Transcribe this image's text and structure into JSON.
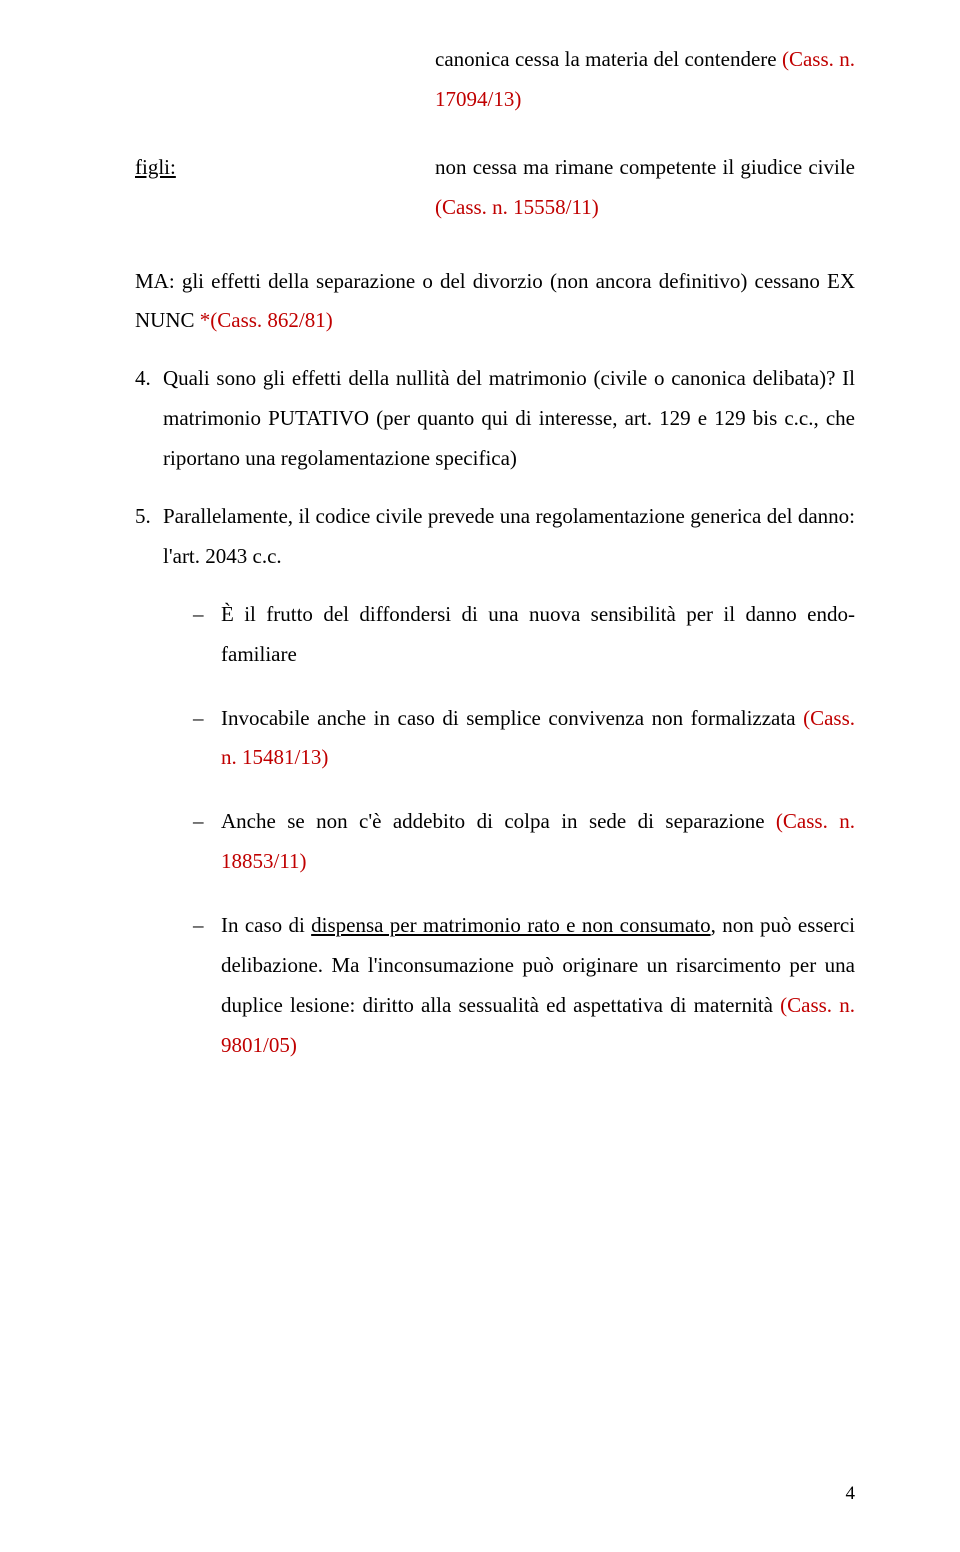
{
  "block1": {
    "text": "canonica cessa la materia del contendere ",
    "ref": "(Cass. n. 17094/13)"
  },
  "figli": {
    "label": "figli:",
    "text": "non cessa ma rimane competente il giudice civile ",
    "ref": "(Cass. n. 15558/11)"
  },
  "ma": {
    "prefix": "MA: gli effetti della separazione o del divorzio (non ancora definitivo) cessano EX NUNC ",
    "ref": "*(Cass. 862/81)"
  },
  "p4": {
    "num": "4.",
    "text": "Quali sono gli effetti della nullità del matrimonio (civile o canonica delibata)? Il matrimonio PUTATIVO (per quanto qui di interesse, art. 129 e 129 bis c.c., che riportano una regolamentazione specifica)"
  },
  "p5": {
    "num": "5.",
    "text": "Parallelamente, il codice civile prevede una regolamentazione generica del danno: l'art. 2043 c.c."
  },
  "bullets": {
    "b1": {
      "text": "È il frutto del diffondersi di una nuova sensibilità per il danno endo-familiare"
    },
    "b2": {
      "text": "Invocabile anche in caso di semplice convivenza non formalizzata ",
      "ref": "(Cass. n. 15481/13)"
    },
    "b3": {
      "text": "Anche se non c'è addebito di colpa in sede di separazione ",
      "ref": "(Cass. n. 18853/11)"
    },
    "b4": {
      "pre": "In caso di ",
      "u": "dispensa per matrimonio rato e non consumato",
      "post": ", non può esserci delibazione. Ma l'inconsumazione può originare un risarcimento per una duplice lesione: diritto alla sessualità ed aspettativa di maternità ",
      "ref": "(Cass. n. 9801/05)"
    }
  },
  "pageNumber": "4",
  "colors": {
    "red": "#c00000",
    "text": "#000000",
    "bg": "#ffffff"
  },
  "dash": "–"
}
